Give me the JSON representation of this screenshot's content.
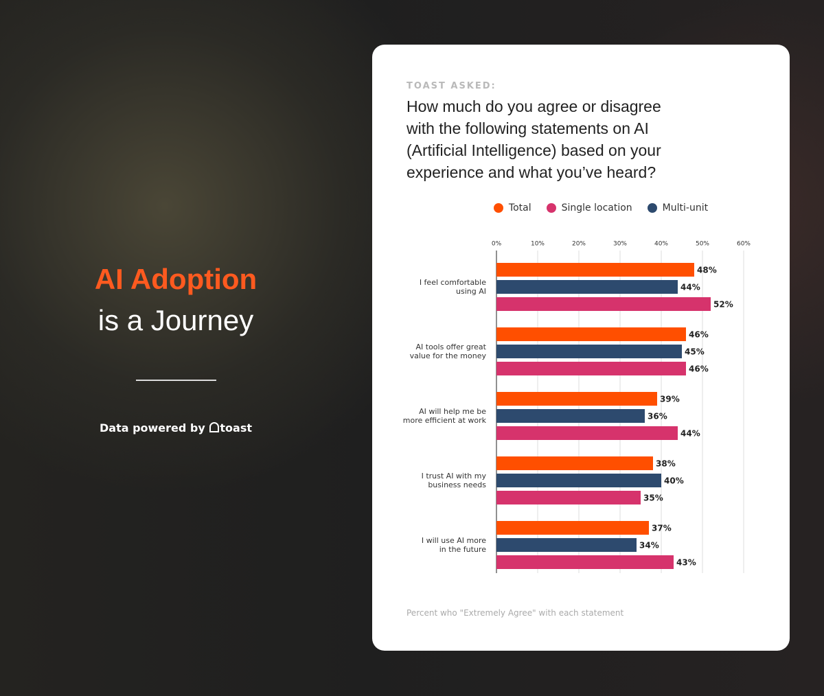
{
  "left_panel": {
    "headline": "AI Adoption",
    "subheadline": "is a Journey",
    "credit": "Data powered by",
    "logo": "toast"
  },
  "chart_data": {
    "type": "bar",
    "orientation": "horizontal",
    "eyebrow": "TOAST ASKED:",
    "title": "How much do you agree or disagree\nwith the following statements on AI\n(Artificial Intelligence) based on your\nexperience and what you’ve heard?",
    "footnote": "Percent who \"Extremely Agree\" with each statement",
    "categories": [
      "I feel comfortable\nusing AI",
      "AI tools offer great\nvalue for the money",
      "AI will help me be\nmore efficient at work",
      "I trust AI with my\nbusiness needs",
      "I will use AI more\nin the future"
    ],
    "series": [
      {
        "name": "Total",
        "color": "#ff4f00",
        "values": [
          48,
          46,
          39,
          38,
          37
        ],
        "value_labels": [
          "48%",
          "46%",
          "39%",
          "38%",
          "37%"
        ]
      },
      {
        "name": "Single location",
        "color": "#d6336c",
        "values": [
          52,
          46,
          44,
          35,
          43
        ],
        "value_labels": [
          "52%",
          "46%",
          "44%",
          "35%",
          "43%"
        ]
      },
      {
        "name": "Multi-unit",
        "color": "#2d4a6e",
        "values": [
          44,
          45,
          36,
          40,
          34
        ],
        "value_labels": [
          "44%",
          "45%",
          "36%",
          "40%",
          "34%"
        ]
      }
    ],
    "xlim": [
      0,
      60
    ],
    "xticks": [
      {
        "value": 0,
        "label": "0%"
      },
      {
        "value": 10,
        "label": "10%"
      },
      {
        "value": 20,
        "label": "20%"
      },
      {
        "value": 30,
        "label": "30%"
      },
      {
        "value": 40,
        "label": "40%"
      },
      {
        "value": 50,
        "label": "50%"
      },
      {
        "value": 60,
        "label": "60%"
      }
    ],
    "grid": true,
    "legend": "top"
  }
}
